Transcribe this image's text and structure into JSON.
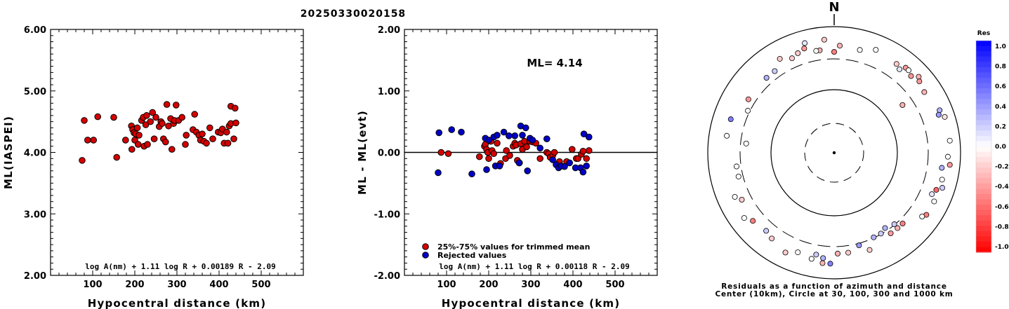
{
  "title": "20250330020158",
  "chart_data": [
    {
      "type": "scatter",
      "id": "ml-vs-distance",
      "xlabel": "Hypocentral distance (km)",
      "ylabel": "ML(IASPEI)",
      "xlim": [
        0,
        600
      ],
      "ylim": [
        2.0,
        6.0
      ],
      "xticks": [
        "100",
        "200",
        "300",
        "400",
        "500"
      ],
      "yticks": [
        "2.00",
        "3.00",
        "4.00",
        "5.00",
        "6.00"
      ],
      "formula": "log A(nm) + 1.11 log R + 0.00189 R - 2.09",
      "point_color": "#d40000",
      "points": [
        [
          75,
          3.87
        ],
        [
          80,
          4.52
        ],
        [
          88,
          4.2
        ],
        [
          102,
          4.2
        ],
        [
          112,
          4.58
        ],
        [
          150,
          4.57
        ],
        [
          157,
          3.92
        ],
        [
          178,
          4.2
        ],
        [
          193,
          4.05
        ],
        [
          192,
          4.43
        ],
        [
          195,
          4.37
        ],
        [
          198,
          4.32
        ],
        [
          200,
          4.2
        ],
        [
          202,
          4.3
        ],
        [
          206,
          4.4
        ],
        [
          208,
          4.13
        ],
        [
          210,
          4.28
        ],
        [
          216,
          4.52
        ],
        [
          220,
          4.57
        ],
        [
          222,
          4.1
        ],
        [
          226,
          4.45
        ],
        [
          228,
          4.6
        ],
        [
          230,
          4.13
        ],
        [
          237,
          4.5
        ],
        [
          242,
          4.65
        ],
        [
          246,
          4.22
        ],
        [
          250,
          4.57
        ],
        [
          258,
          4.42
        ],
        [
          262,
          4.5
        ],
        [
          265,
          4.47
        ],
        [
          268,
          4.22
        ],
        [
          273,
          4.17
        ],
        [
          276,
          4.78
        ],
        [
          280,
          4.43
        ],
        [
          285,
          4.55
        ],
        [
          288,
          4.05
        ],
        [
          292,
          4.47
        ],
        [
          294,
          4.52
        ],
        [
          298,
          4.77
        ],
        [
          304,
          4.52
        ],
        [
          312,
          4.57
        ],
        [
          320,
          4.13
        ],
        [
          322,
          4.28
        ],
        [
          338,
          4.37
        ],
        [
          342,
          4.62
        ],
        [
          346,
          4.33
        ],
        [
          352,
          4.28
        ],
        [
          356,
          4.2
        ],
        [
          360,
          4.3
        ],
        [
          364,
          4.18
        ],
        [
          370,
          4.15
        ],
        [
          378,
          4.4
        ],
        [
          385,
          4.22
        ],
        [
          398,
          4.33
        ],
        [
          404,
          4.32
        ],
        [
          408,
          4.38
        ],
        [
          412,
          4.15
        ],
        [
          418,
          4.33
        ],
        [
          421,
          4.15
        ],
        [
          424,
          4.43
        ],
        [
          428,
          4.47
        ],
        [
          428,
          4.75
        ],
        [
          435,
          4.22
        ],
        [
          438,
          4.72
        ],
        [
          440,
          4.48
        ]
      ]
    },
    {
      "type": "scatter",
      "id": "residual-vs-distance",
      "xlabel": "Hypocentral distance (km)",
      "ylabel": "ML - ML(evt)",
      "xlim": [
        0,
        600
      ],
      "ylim": [
        -2.0,
        2.0
      ],
      "xticks": [
        "100",
        "200",
        "300",
        "400",
        "500"
      ],
      "yticks": [
        "-2.00",
        "-1.00",
        "0.00",
        "1.00",
        "2.00"
      ],
      "ml_label": "ML= 4.14",
      "formula": "log A(nm) + 1.11 log R + 0.00118 R - 2.09",
      "legend": [
        {
          "label": "25%-75% values for trimmed mean",
          "color": "#d40000"
        },
        {
          "label": "Rejected values",
          "color": "#0000c8"
        }
      ],
      "series": [
        {
          "name": "25%-75% values for trimmed mean",
          "color": "#d40000",
          "points": [
            [
              87,
              0.0
            ],
            [
              104,
              -0.02
            ],
            [
              178,
              -0.07
            ],
            [
              190,
              0.1
            ],
            [
              192,
              0.13
            ],
            [
              195,
              0.05
            ],
            [
              198,
              0.0
            ],
            [
              200,
              -0.1
            ],
            [
              205,
              0.18
            ],
            [
              208,
              0.03
            ],
            [
              212,
              -0.02
            ],
            [
              220,
              0.15
            ],
            [
              228,
              -0.18
            ],
            [
              240,
              -0.1
            ],
            [
              242,
              0.03
            ],
            [
              250,
              -0.05
            ],
            [
              258,
              0.1
            ],
            [
              262,
              0.15
            ],
            [
              265,
              0.12
            ],
            [
              268,
              -0.13
            ],
            [
              273,
              -0.17
            ],
            [
              276,
              0.14
            ],
            [
              280,
              0.05
            ],
            [
              285,
              0.18
            ],
            [
              290,
              0.09
            ],
            [
              298,
              0.18
            ],
            [
              304,
              0.17
            ],
            [
              312,
              0.15
            ],
            [
              322,
              -0.1
            ],
            [
              338,
              0.0
            ],
            [
              342,
              -0.02
            ],
            [
              346,
              -0.08
            ],
            [
              352,
              -0.05
            ],
            [
              356,
              0.0
            ],
            [
              368,
              -0.15
            ],
            [
              385,
              -0.15
            ],
            [
              398,
              0.05
            ],
            [
              408,
              -0.1
            ],
            [
              412,
              -0.1
            ],
            [
              420,
              -0.03
            ],
            [
              424,
              0.02
            ],
            [
              432,
              -0.1
            ],
            [
              438,
              0.03
            ]
          ]
        },
        {
          "name": "Rejected values",
          "color": "#0000c8",
          "points": [
            [
              80,
              -0.33
            ],
            [
              82,
              0.32
            ],
            [
              112,
              0.37
            ],
            [
              135,
              0.33
            ],
            [
              160,
              -0.35
            ],
            [
              192,
              0.23
            ],
            [
              195,
              -0.28
            ],
            [
              200,
              0.2
            ],
            [
              212,
              0.25
            ],
            [
              216,
              -0.22
            ],
            [
              220,
              0.28
            ],
            [
              226,
              -0.22
            ],
            [
              236,
              0.33
            ],
            [
              248,
              0.27
            ],
            [
              262,
              0.27
            ],
            [
              272,
              -0.17
            ],
            [
              276,
              0.43
            ],
            [
              280,
              0.28
            ],
            [
              288,
              0.4
            ],
            [
              292,
              -0.3
            ],
            [
              298,
              0.23
            ],
            [
              304,
              0.2
            ],
            [
              322,
              0.07
            ],
            [
              338,
              0.22
            ],
            [
              352,
              -0.12
            ],
            [
              360,
              -0.2
            ],
            [
              366,
              -0.25
            ],
            [
              372,
              -0.22
            ],
            [
              380,
              -0.23
            ],
            [
              392,
              -0.17
            ],
            [
              406,
              -0.25
            ],
            [
              418,
              -0.25
            ],
            [
              424,
              -0.32
            ],
            [
              426,
              0.3
            ],
            [
              432,
              -0.22
            ],
            [
              438,
              0.25
            ]
          ]
        }
      ]
    },
    {
      "type": "scatter",
      "id": "residual-azimuth-polar",
      "north_label": "N",
      "caption_line1": "Residuals as a function of azimuth and distance",
      "caption_line2": "Center (10km), Circle at 30, 100, 300 and 1000 km",
      "colorbar": {
        "title": "Res",
        "labels": [
          "1.0",
          "0.8",
          "0.6",
          "0.4",
          "0.2",
          "0.0",
          "-0.2",
          "-0.4",
          "-0.6",
          "-0.8",
          "-1.0"
        ],
        "max_color": "#0000ff",
        "zero_color": "#ffffff",
        "min_color": "#ff0000"
      },
      "points_az_dist_res": [
        [
          0,
          80,
          -0.5
        ],
        [
          3,
          85,
          -0.3
        ],
        [
          -8,
          82,
          -0.3
        ],
        [
          -5,
          90,
          -0.2
        ],
        [
          -20,
          84,
          -0.2
        ],
        [
          -30,
          86,
          -0.2
        ],
        [
          -15,
          90,
          0.1
        ],
        [
          14,
          84,
          0.0
        ],
        [
          22,
          88,
          0.0
        ],
        [
          35,
          86,
          -0.2
        ],
        [
          38,
          84,
          0.1
        ],
        [
          40,
          88,
          -0.4
        ],
        [
          42,
          88,
          0.0
        ],
        [
          45,
          86,
          -0.4
        ],
        [
          48,
          90,
          -0.3
        ],
        [
          50,
          88,
          -0.4
        ],
        [
          56,
          86,
          -0.3
        ],
        [
          55,
          66,
          -0.3
        ],
        [
          68,
          90,
          0.3
        ],
        [
          70,
          88,
          0.4
        ],
        [
          72,
          92,
          -0.1
        ],
        [
          84,
          92,
          0.0
        ],
        [
          92,
          90,
          0.0
        ],
        [
          96,
          92,
          -0.4
        ],
        [
          98,
          86,
          0.3
        ],
        [
          104,
          88,
          0.0
        ],
        [
          108,
          90,
          0.2
        ],
        [
          110,
          86,
          -0.6
        ],
        [
          113,
          84,
          0.1
        ],
        [
          116,
          88,
          0.0
        ],
        [
          124,
          88,
          -0.5
        ],
        [
          126,
          86,
          0.0
        ],
        [
          136,
          78,
          -0.5
        ],
        [
          140,
          78,
          -0.3
        ],
        [
          145,
          78,
          -0.4
        ],
        [
          140,
          74,
          0.2
        ],
        [
          146,
          72,
          0.3
        ],
        [
          150,
          74,
          0.2
        ],
        [
          155,
          74,
          0.3
        ],
        [
          160,
          82,
          -0.2
        ],
        [
          165,
          76,
          0.4
        ],
        [
          172,
          80,
          -0.2
        ],
        [
          178,
          80,
          -0.3
        ],
        [
          182,
          88,
          0.5
        ],
        [
          186,
          88,
          -0.3
        ],
        [
          186,
          84,
          0.3
        ],
        [
          190,
          82,
          0.2
        ],
        [
          192,
          86,
          0.0
        ],
        [
          200,
          84,
          0.0
        ],
        [
          206,
          88,
          -0.2
        ],
        [
          216,
          84,
          -0.2
        ],
        [
          221,
          82,
          0.2
        ],
        [
          230,
          84,
          -0.5
        ],
        [
          234,
          88,
          0.0
        ],
        [
          243,
          82,
          -0.2
        ],
        [
          246,
          86,
          0.0
        ],
        [
          256,
          78,
          0.0
        ],
        [
          262,
          78,
          0.0
        ],
        [
          276,
          70,
          0.0
        ],
        [
          279,
          86,
          0.0
        ],
        [
          288,
          86,
          0.5
        ],
        [
          296,
          76,
          0.0
        ],
        [
          302,
          80,
          -0.4
        ],
        [
          318,
          80,
          0.3
        ],
        [
          324,
          80,
          0.2
        ],
        [
          336,
          82,
          -0.2
        ],
        [
          344,
          86,
          -0.4
        ],
        [
          350,
          82,
          0.0
        ]
      ]
    }
  ]
}
